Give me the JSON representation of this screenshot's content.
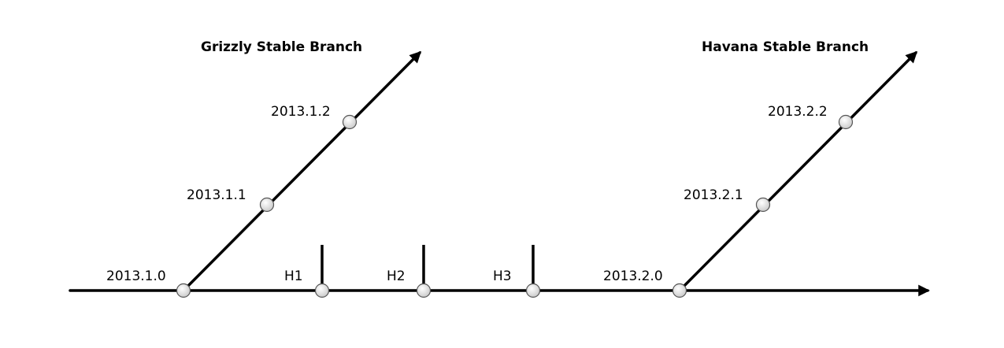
{
  "colors": {
    "line": "#000000",
    "node_fill": "#e6e6e6",
    "node_stroke": "#555555"
  },
  "branches": {
    "grizzly": {
      "title": "Grizzly Stable Branch",
      "releases": [
        "2013.1.0",
        "2013.1.1",
        "2013.1.2"
      ]
    },
    "havana": {
      "title": "Havana Stable Branch",
      "releases": [
        "2013.2.0",
        "2013.2.1",
        "2013.2.2"
      ]
    }
  },
  "milestones": [
    "H1",
    "H2",
    "H3"
  ]
}
